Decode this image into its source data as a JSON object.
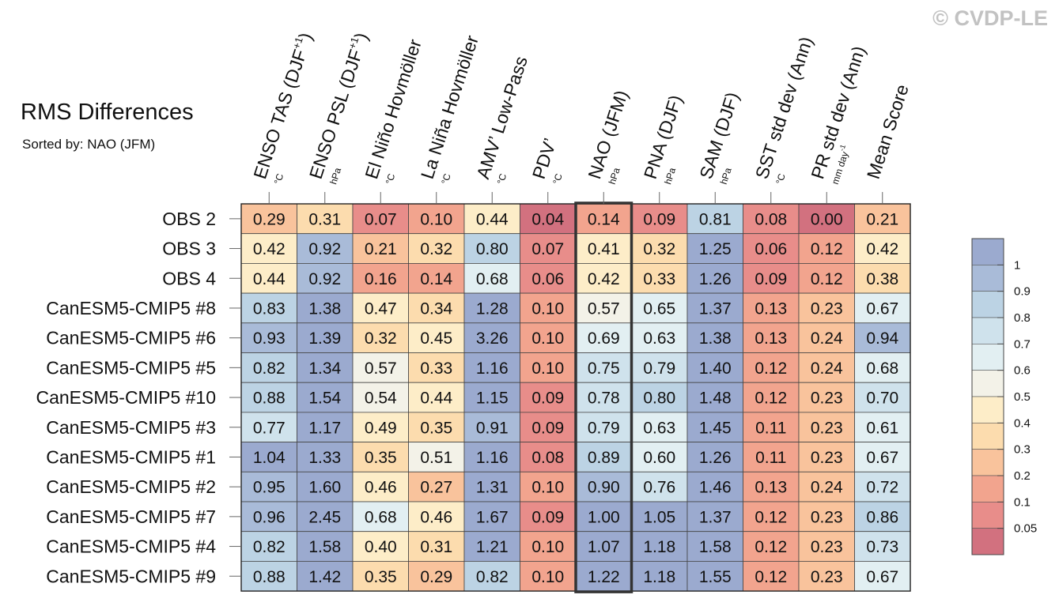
{
  "watermark": "© CVDP-LE",
  "chart_data": {
    "type": "heatmap",
    "title": "RMS Differences",
    "subtitle": "Sorted by: NAO (JFM)",
    "highlight_column": "NAO (JFM)",
    "columns": [
      {
        "label": "ENSO TAS (DJF",
        "sup": "+1",
        "close": ")",
        "unit": "°C"
      },
      {
        "label": "ENSO PSL (DJF",
        "sup": "+1",
        "close": ")",
        "unit": "hPa"
      },
      {
        "label": "El Niño Hovmöller",
        "sup": "",
        "close": "",
        "unit": "°C"
      },
      {
        "label": "La Niña Hovmöller",
        "sup": "",
        "close": "",
        "unit": "°C"
      },
      {
        "label": "AMV’ Low-Pass",
        "sup": "",
        "close": "",
        "unit": "°C"
      },
      {
        "label": "PDV’",
        "sup": "",
        "close": "",
        "unit": "°C"
      },
      {
        "label": "NAO (JFM)",
        "sup": "",
        "close": "",
        "unit": "hPa"
      },
      {
        "label": "PNA (DJF)",
        "sup": "",
        "close": "",
        "unit": "hPa"
      },
      {
        "label": "SAM (DJF)",
        "sup": "",
        "close": "",
        "unit": "hPa"
      },
      {
        "label": "SST std dev (Ann)",
        "sup": "",
        "close": "",
        "unit": "°C"
      },
      {
        "label": "PR std dev (Ann)",
        "sup": "",
        "close": "",
        "unit": "mm day",
        "unit_sup": "-1"
      },
      {
        "label": "Mean Score",
        "sup": "",
        "close": "",
        "unit": ""
      }
    ],
    "rows": [
      "OBS 2",
      "OBS 3",
      "OBS 4",
      "CanESM5-CMIP5 #8",
      "CanESM5-CMIP5 #6",
      "CanESM5-CMIP5 #5",
      "CanESM5-CMIP5 #10",
      "CanESM5-CMIP5 #3",
      "CanESM5-CMIP5 #1",
      "CanESM5-CMIP5 #2",
      "CanESM5-CMIP5 #7",
      "CanESM5-CMIP5 #4",
      "CanESM5-CMIP5 #9"
    ],
    "values": [
      [
        0.29,
        0.31,
        0.07,
        0.1,
        0.44,
        0.04,
        0.14,
        0.09,
        0.81,
        0.08,
        0.0,
        0.21
      ],
      [
        0.42,
        0.92,
        0.21,
        0.32,
        0.8,
        0.07,
        0.41,
        0.32,
        1.25,
        0.06,
        0.12,
        0.42
      ],
      [
        0.44,
        0.92,
        0.16,
        0.14,
        0.68,
        0.06,
        0.42,
        0.33,
        1.26,
        0.09,
        0.12,
        0.38
      ],
      [
        0.83,
        1.38,
        0.47,
        0.34,
        1.28,
        0.1,
        0.57,
        0.65,
        1.37,
        0.13,
        0.23,
        0.67
      ],
      [
        0.93,
        1.39,
        0.32,
        0.45,
        3.26,
        0.1,
        0.69,
        0.63,
        1.38,
        0.13,
        0.24,
        0.94
      ],
      [
        0.82,
        1.34,
        0.57,
        0.33,
        1.16,
        0.1,
        0.75,
        0.79,
        1.4,
        0.12,
        0.24,
        0.68
      ],
      [
        0.88,
        1.54,
        0.54,
        0.44,
        1.15,
        0.09,
        0.78,
        0.8,
        1.48,
        0.12,
        0.23,
        0.7
      ],
      [
        0.77,
        1.17,
        0.49,
        0.35,
        0.91,
        0.09,
        0.79,
        0.63,
        1.45,
        0.11,
        0.23,
        0.61
      ],
      [
        1.04,
        1.33,
        0.35,
        0.51,
        1.16,
        0.08,
        0.89,
        0.6,
        1.26,
        0.11,
        0.23,
        0.67
      ],
      [
        0.95,
        1.6,
        0.46,
        0.27,
        1.31,
        0.1,
        0.9,
        0.76,
        1.46,
        0.13,
        0.24,
        0.72
      ],
      [
        0.96,
        2.45,
        0.68,
        0.46,
        1.67,
        0.09,
        1.0,
        1.05,
        1.37,
        0.12,
        0.23,
        0.86
      ],
      [
        0.82,
        1.58,
        0.4,
        0.31,
        1.21,
        0.1,
        1.07,
        1.18,
        1.58,
        0.12,
        0.23,
        0.73
      ],
      [
        0.88,
        1.42,
        0.35,
        0.29,
        0.82,
        0.1,
        1.22,
        1.18,
        1.55,
        0.12,
        0.23,
        0.67
      ]
    ],
    "colorbar": {
      "ticks": [
        "1",
        "0.9",
        "0.8",
        "0.7",
        "0.6",
        "0.5",
        "0.4",
        "0.3",
        "0.2",
        "0.1",
        "0.05"
      ],
      "bins": [
        {
          "min": 1.0,
          "color": "#9baacf"
        },
        {
          "min": 0.9,
          "color": "#a9bbd8"
        },
        {
          "min": 0.8,
          "color": "#bcd3e4"
        },
        {
          "min": 0.7,
          "color": "#cfe2ec"
        },
        {
          "min": 0.6,
          "color": "#e2eff2"
        },
        {
          "min": 0.5,
          "color": "#f3f2e8"
        },
        {
          "min": 0.4,
          "color": "#fdedc8"
        },
        {
          "min": 0.3,
          "color": "#fcdcae"
        },
        {
          "min": 0.2,
          "color": "#f9c39c"
        },
        {
          "min": 0.1,
          "color": "#f2a48e"
        },
        {
          "min": 0.05,
          "color": "#e88d8a"
        },
        {
          "min": -1,
          "color": "#d2717f"
        }
      ]
    }
  }
}
